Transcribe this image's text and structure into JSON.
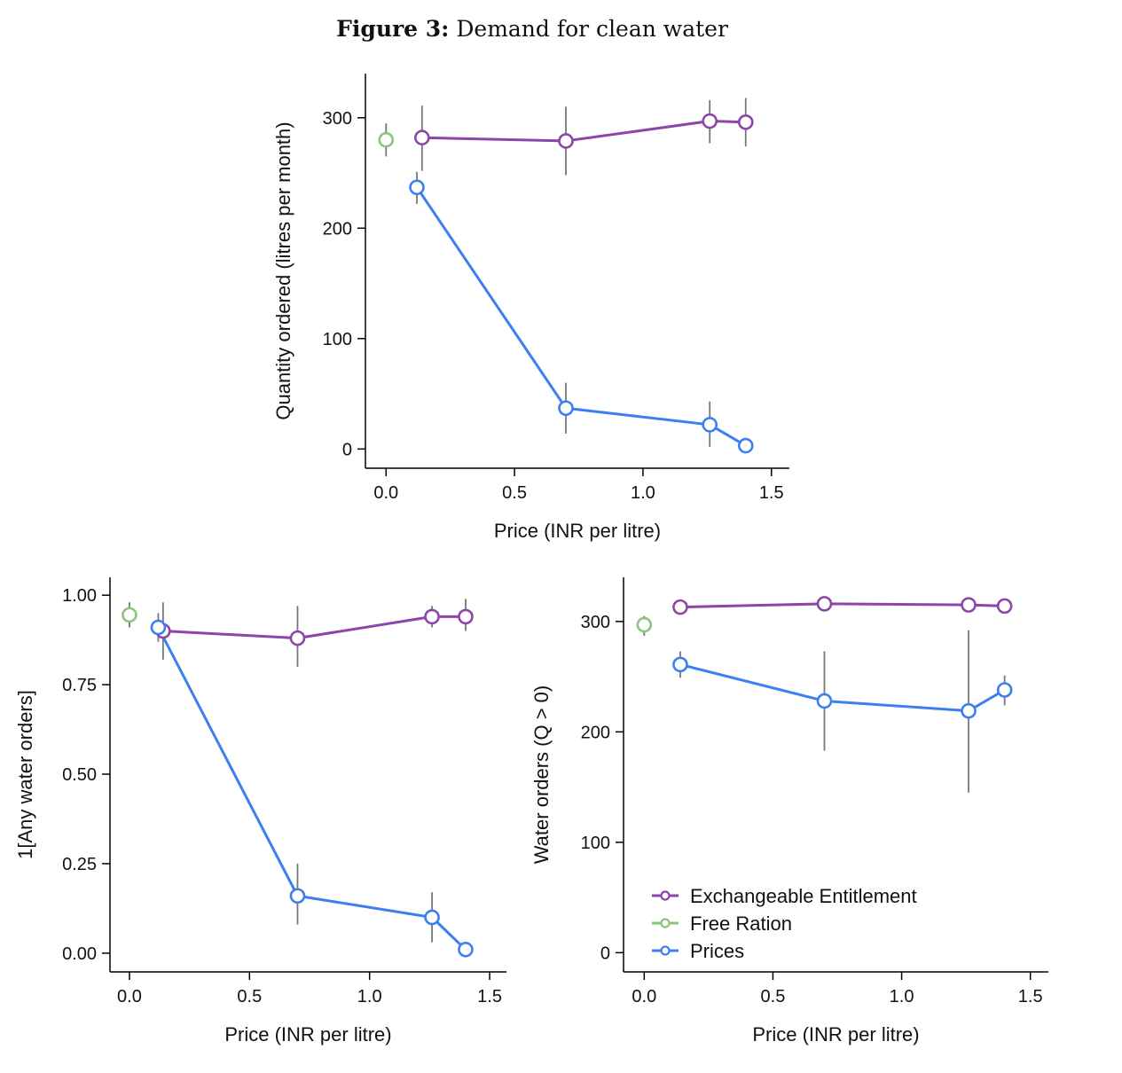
{
  "figure": {
    "label": "Figure 3:",
    "title": "Demand for clean water"
  },
  "colors": {
    "Exchangeable Entitlement": "#8e44a8",
    "Free Ration": "#8bc47e",
    "Prices": "#3b7ff0",
    "errorbar": "#777777"
  },
  "legend": {
    "items": [
      "Exchangeable Entitlement",
      "Free Ration",
      "Prices"
    ],
    "placement": "bottom-left of bottom-right panel"
  },
  "chart_data": [
    {
      "type": "line",
      "panel": "top",
      "xlabel": "Price (INR per litre)",
      "ylabel": "Quantity ordered (litres per month)",
      "xlim": [
        -0.07,
        1.57
      ],
      "ylim": [
        -15,
        340
      ],
      "xticks": [
        0,
        0.5,
        1,
        1.5
      ],
      "xtick_labels": [
        "0.0",
        "0.5",
        "1.0",
        "1.5"
      ],
      "yticks": [
        0,
        100,
        200,
        300
      ],
      "ytick_labels": [
        "0",
        "100",
        "200",
        "300"
      ],
      "series": [
        {
          "name": "Exchangeable Entitlement",
          "line": true,
          "x": [
            0.14,
            0.7,
            1.26,
            1.4
          ],
          "y": [
            282,
            279,
            297,
            296
          ],
          "err_low": [
            252,
            248,
            277,
            274
          ],
          "err_high": [
            311,
            310,
            316,
            318
          ]
        },
        {
          "name": "Free Ration",
          "line": false,
          "x": [
            0.0
          ],
          "y": [
            280
          ],
          "err_low": [
            265
          ],
          "err_high": [
            295
          ]
        },
        {
          "name": "Prices",
          "line": true,
          "x": [
            0.12,
            0.7,
            1.26,
            1.4
          ],
          "y": [
            237,
            37,
            22,
            3
          ],
          "err_low": [
            222,
            14,
            2,
            0
          ],
          "err_high": [
            251,
            60,
            43,
            3
          ]
        }
      ]
    },
    {
      "type": "line",
      "panel": "bottom-left",
      "xlabel": "Price (INR per litre)",
      "ylabel": "1[Any water orders]",
      "xlim": [
        -0.07,
        1.57
      ],
      "ylim": [
        -0.045,
        1.05
      ],
      "xticks": [
        0,
        0.5,
        1,
        1.5
      ],
      "xtick_labels": [
        "0.0",
        "0.5",
        "1.0",
        "1.5"
      ],
      "yticks": [
        0,
        0.25,
        0.5,
        0.75,
        1.0
      ],
      "ytick_labels": [
        "0.00",
        "0.25",
        "0.50",
        "0.75",
        "1.00"
      ],
      "series": [
        {
          "name": "Exchangeable Entitlement",
          "line": true,
          "x": [
            0.14,
            0.7,
            1.26,
            1.4
          ],
          "y": [
            0.9,
            0.88,
            0.94,
            0.94
          ],
          "err_low": [
            0.82,
            0.8,
            0.91,
            0.9
          ],
          "err_high": [
            0.98,
            0.97,
            0.97,
            0.99
          ]
        },
        {
          "name": "Free Ration",
          "line": false,
          "x": [
            0.0
          ],
          "y": [
            0.945
          ],
          "err_low": [
            0.91
          ],
          "err_high": [
            0.98
          ]
        },
        {
          "name": "Prices",
          "line": true,
          "x": [
            0.12,
            0.7,
            1.26,
            1.4
          ],
          "y": [
            0.91,
            0.16,
            0.1,
            0.01
          ],
          "err_low": [
            0.87,
            0.08,
            0.03,
            0.01
          ],
          "err_high": [
            0.95,
            0.25,
            0.17,
            0.01
          ]
        }
      ]
    },
    {
      "type": "line",
      "panel": "bottom-right",
      "xlabel": "Price (INR per litre)",
      "ylabel": "Water orders (Q > 0)",
      "xlim": [
        -0.07,
        1.57
      ],
      "ylim": [
        -15,
        340
      ],
      "xticks": [
        0,
        0.5,
        1,
        1.5
      ],
      "xtick_labels": [
        "0.0",
        "0.5",
        "1.0",
        "1.5"
      ],
      "yticks": [
        0,
        100,
        200,
        300
      ],
      "ytick_labels": [
        "0",
        "100",
        "200",
        "300"
      ],
      "series": [
        {
          "name": "Exchangeable Entitlement",
          "line": true,
          "x": [
            0.14,
            0.7,
            1.26,
            1.4
          ],
          "y": [
            313,
            316,
            315,
            314
          ],
          "err_low": [
            313,
            316,
            315,
            314
          ],
          "err_high": [
            313,
            316,
            315,
            314
          ]
        },
        {
          "name": "Free Ration",
          "line": false,
          "x": [
            0.0
          ],
          "y": [
            297
          ],
          "err_low": [
            287
          ],
          "err_high": [
            305
          ]
        },
        {
          "name": "Prices",
          "line": true,
          "x": [
            0.14,
            0.7,
            1.26,
            1.4
          ],
          "y": [
            261,
            228,
            219,
            238
          ],
          "err_low": [
            249,
            183,
            145,
            224
          ],
          "err_high": [
            273,
            273,
            292,
            251
          ]
        }
      ]
    }
  ]
}
